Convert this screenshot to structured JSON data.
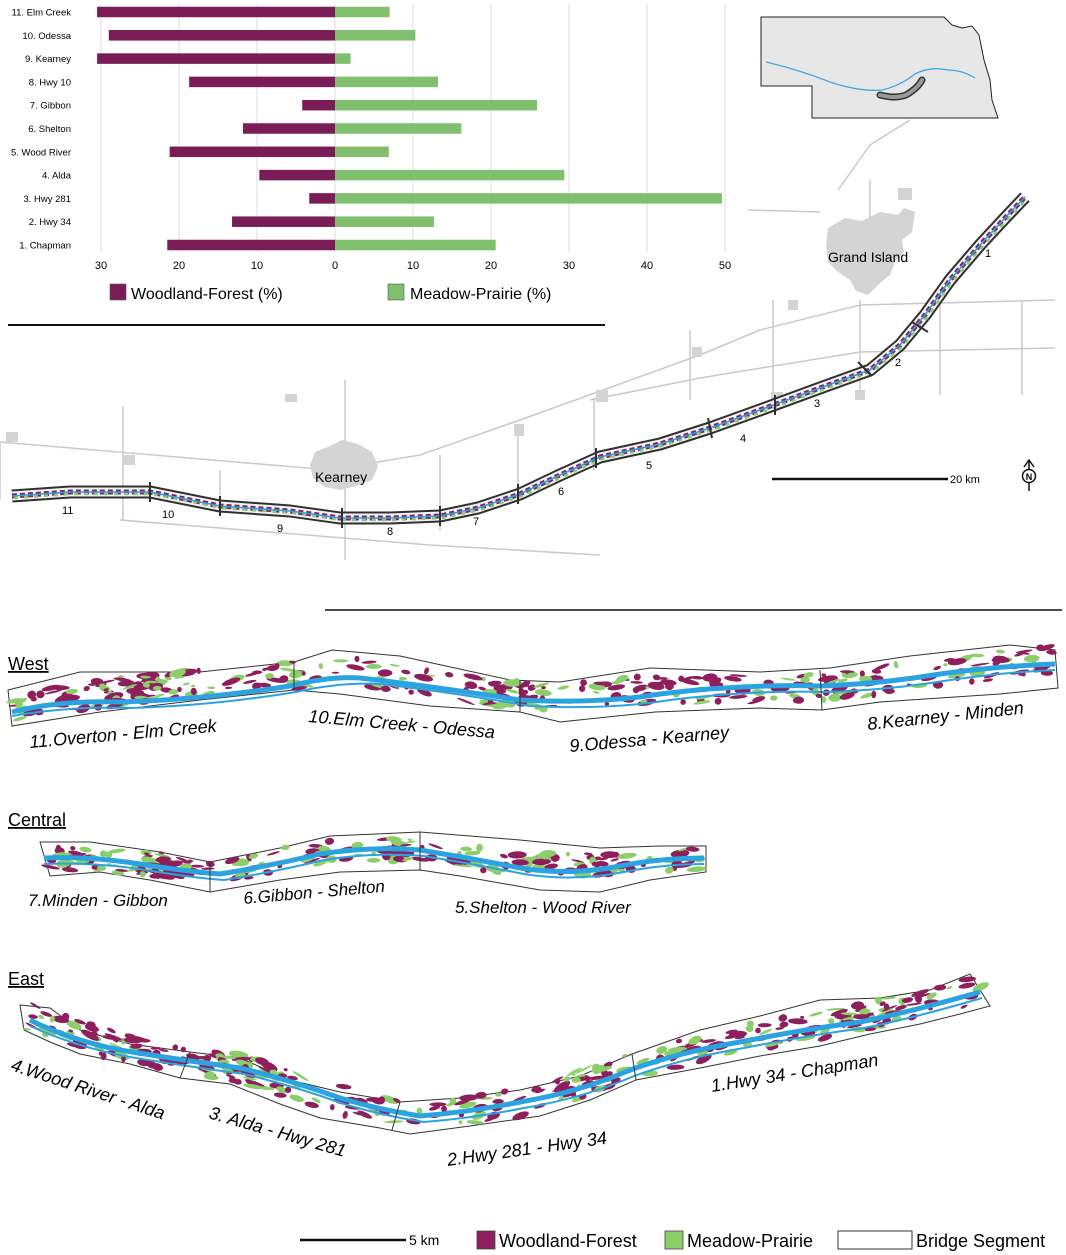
{
  "chart_data": {
    "type": "bar",
    "categories": [
      "11. Elm Creek",
      "10. Odessa",
      "9. Kearney",
      "8. Hwy 10",
      "7. Gibbon",
      "6. Shelton",
      "5. Wood River",
      "4. Alda",
      "3. Hwy 281",
      "2. Hwy 34",
      "1. Chapman"
    ],
    "series": [
      {
        "name": "Woodland-Forest (%)",
        "color": "#7a1c56",
        "values": [
          30.5,
          29,
          30.5,
          18.7,
          4.2,
          11.8,
          21.2,
          9.7,
          3.3,
          13.2,
          21.5
        ]
      },
      {
        "name": "Meadow-Prairie (%)",
        "color": "#7fbf6e",
        "values": [
          7,
          10.3,
          2,
          13.2,
          25.9,
          16.2,
          6.9,
          29.4,
          49.6,
          12.7,
          20.6
        ]
      }
    ],
    "xticks": [
      "30",
      "20",
      "10",
      "0",
      "10",
      "20",
      "30",
      "40",
      "50"
    ],
    "xlim": [
      -30,
      50
    ],
    "grid": true,
    "legend_position": "bottom"
  },
  "overview_map": {
    "cities": [
      "Grand Island",
      "Kearney"
    ],
    "segment_numbers": [
      "1",
      "2",
      "3",
      "4",
      "5",
      "6",
      "7",
      "8",
      "9",
      "10",
      "11"
    ],
    "scale_label": "20 km",
    "north_label": "N"
  },
  "panels": {
    "west": {
      "title": "West",
      "labels": [
        "11.Overton - Elm Creek",
        "10.Elm Creek - Odessa",
        "9.Odessa - Kearney",
        "8.Kearney - Minden"
      ]
    },
    "central": {
      "title": "Central",
      "labels": [
        "7.Minden - Gibbon",
        "6.Gibbon - Shelton",
        "5.Shelton - Wood River"
      ]
    },
    "east": {
      "title": "East",
      "labels": [
        "4.Wood River - Alda",
        "3. Alda - Hwy 281",
        "2.Hwy 281 - Hwy 34",
        "1.Hwy 34 - Chapman"
      ]
    }
  },
  "legend": {
    "scale_label": "5 km",
    "woodland": "Woodland-Forest",
    "meadow": "Meadow-Prairie",
    "bridge": "Bridge Segment"
  },
  "colors": {
    "woodland": "#8e1e5c",
    "meadow": "#8ccf6a",
    "river": "#2aa3e0",
    "roads": "#c8c8d0",
    "urban": "#d4d4d4",
    "outline": "#333333"
  }
}
